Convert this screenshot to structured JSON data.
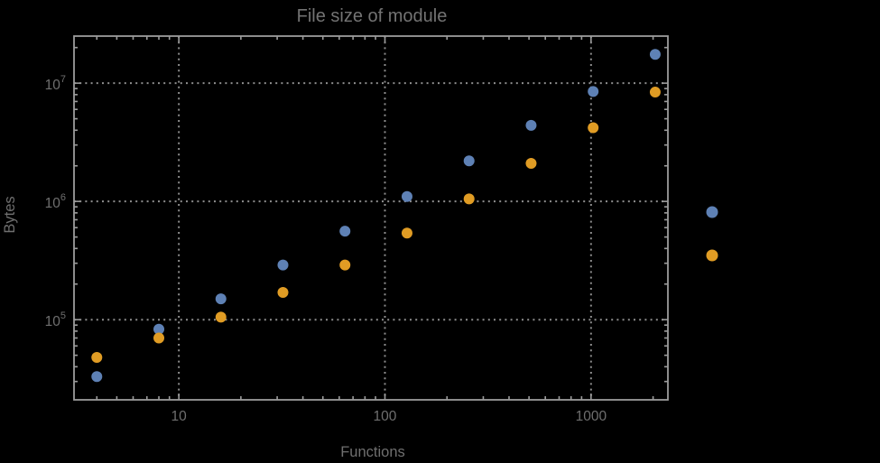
{
  "window": {
    "background": "#000000"
  },
  "chart_data": {
    "type": "scatter",
    "title": "File size of module",
    "xlabel": "Functions",
    "ylabel": "Bytes",
    "x_scale": "log",
    "y_scale": "log",
    "xlim": [
      3.1,
      2360
    ],
    "ylim": [
      21000,
      25000000
    ],
    "grid": "dotted",
    "x": [
      4,
      8,
      16,
      32,
      64,
      128,
      256,
      512,
      1024,
      2048
    ],
    "series": [
      {
        "name": "blue-series",
        "color": "#5e81b5",
        "values": [
          33000,
          83000,
          150000,
          290000,
          560000,
          1100000,
          2200000,
          4400000,
          8500000,
          17500000
        ]
      },
      {
        "name": "orange-series",
        "color": "#e09c24",
        "values": [
          48000,
          70000,
          105000,
          170000,
          290000,
          540000,
          1050000,
          2100000,
          4200000,
          8400000
        ]
      }
    ],
    "x_ticks": [
      {
        "value": 10,
        "label": "10"
      },
      {
        "value": 100,
        "label": "100"
      },
      {
        "value": 1000,
        "label": "1000"
      }
    ],
    "y_ticks": [
      {
        "value": 100000,
        "base": "10",
        "exp": "5"
      },
      {
        "value": 1000000,
        "base": "10",
        "exp": "6"
      },
      {
        "value": 10000000,
        "base": "10",
        "exp": "7"
      }
    ],
    "legend": {
      "position": "outside-right",
      "entries": [
        {
          "label": "",
          "color": "#5e81b5"
        },
        {
          "label": "",
          "color": "#e09c24"
        }
      ]
    },
    "colors": {
      "frame": "#9c9c9c",
      "grid": "#8d8d8d",
      "text": "#6f6f6f"
    },
    "point_radius": 6
  }
}
